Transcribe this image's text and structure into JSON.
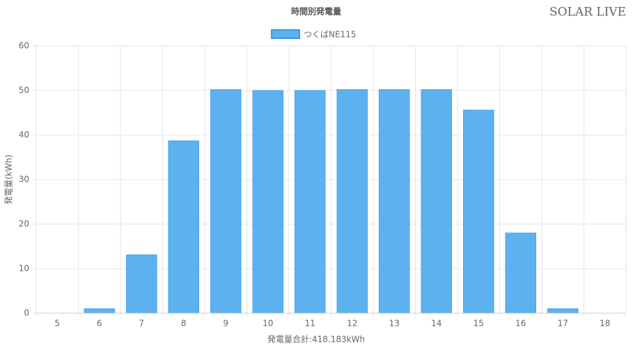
{
  "logo": "SOLAR LIVE",
  "chart_data": {
    "type": "bar",
    "title": "時間別発電量",
    "xlabel": "発電量合計:418.183kWh",
    "ylabel": "発電量(kWh)",
    "categories": [
      "5",
      "6",
      "7",
      "8",
      "9",
      "10",
      "11",
      "12",
      "13",
      "14",
      "15",
      "16",
      "17",
      "18"
    ],
    "series": [
      {
        "name": "つくばNE115",
        "color": "#5cb1ee",
        "values": [
          0,
          1.0,
          13.1,
          38.7,
          50.2,
          50.0,
          50.0,
          50.2,
          50.2,
          50.2,
          45.6,
          18.0,
          1.0,
          0
        ]
      }
    ],
    "ylim": [
      0,
      60
    ],
    "yticks": [
      0,
      10,
      20,
      30,
      40,
      50,
      60
    ],
    "grid": true,
    "legend": "top"
  }
}
